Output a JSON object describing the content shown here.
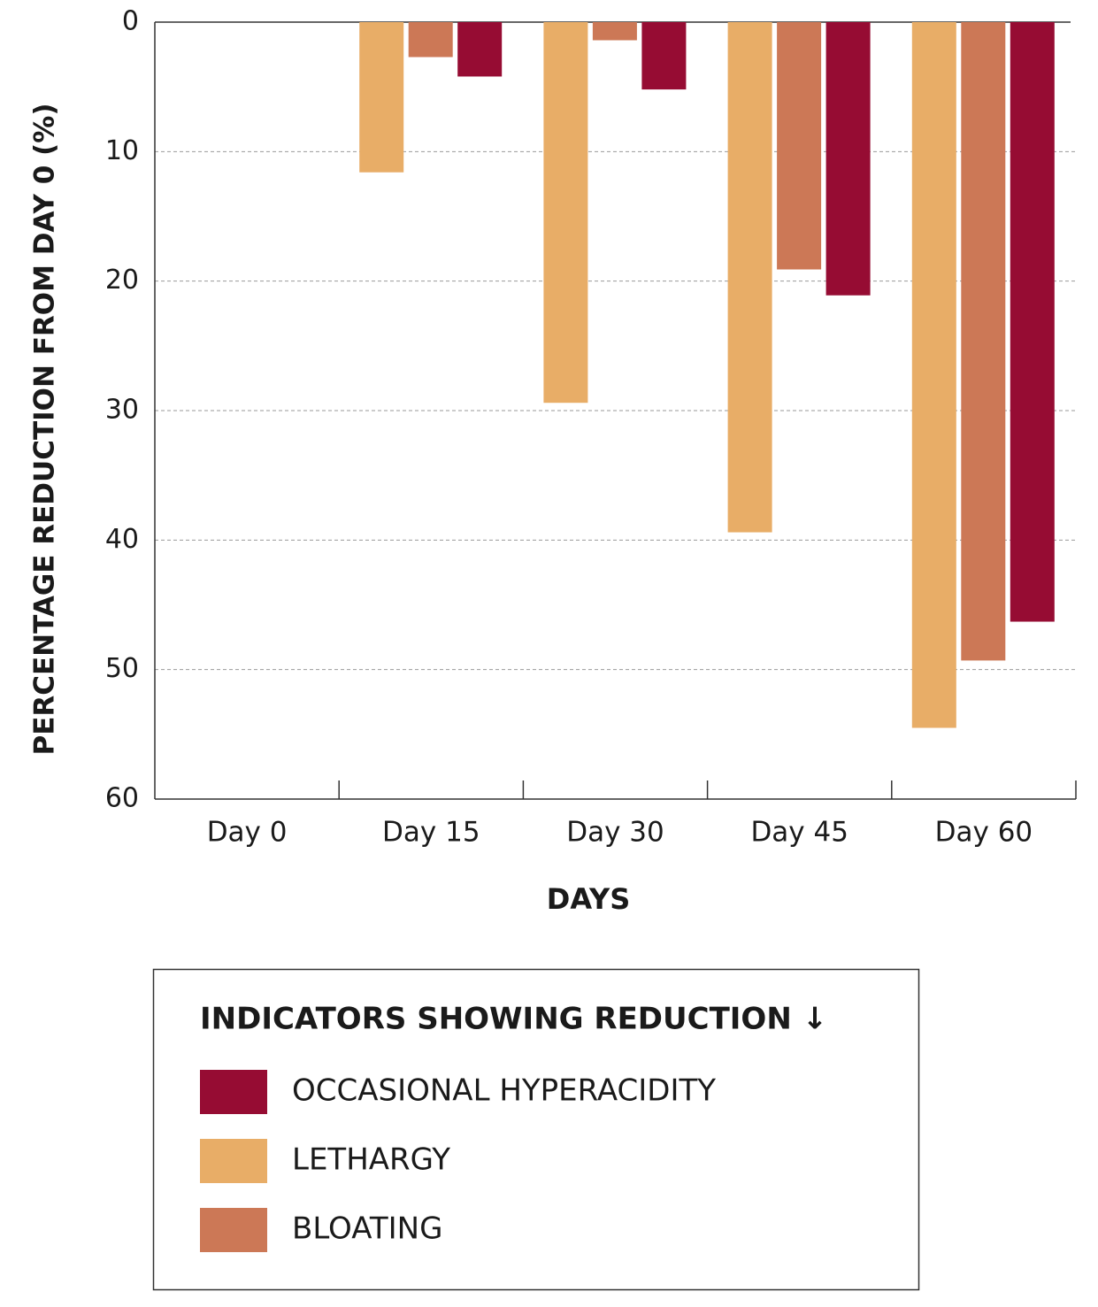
{
  "chart_data": {
    "type": "bar",
    "inverted": true,
    "xlabel": "DAYS",
    "ylabel": "PERCENTAGE REDUCTION  FROM DAY 0 (%)",
    "categories": [
      "Day 0",
      "Day 15",
      "Day 30",
      "Day 45",
      "Day 60"
    ],
    "series": [
      {
        "name": "OCCASIONAL HYPERACIDITY",
        "color": "#960c33",
        "values": [
          0,
          4.2,
          5.2,
          21.1,
          46.3
        ]
      },
      {
        "name": "LETHARGY",
        "color": "#e8ad67",
        "values": [
          0,
          11.6,
          29.4,
          39.4,
          54.5
        ]
      },
      {
        "name": "BLOATING",
        "color": "#cc7856",
        "values": [
          0,
          2.7,
          1.4,
          19.1,
          49.3
        ]
      }
    ],
    "legend_title": "INDICATORS SHOWING REDUCTION ↓",
    "ylim": [
      0,
      60
    ],
    "yticks": [
      0,
      10,
      20,
      30,
      40,
      50,
      60
    ],
    "grid": true
  }
}
